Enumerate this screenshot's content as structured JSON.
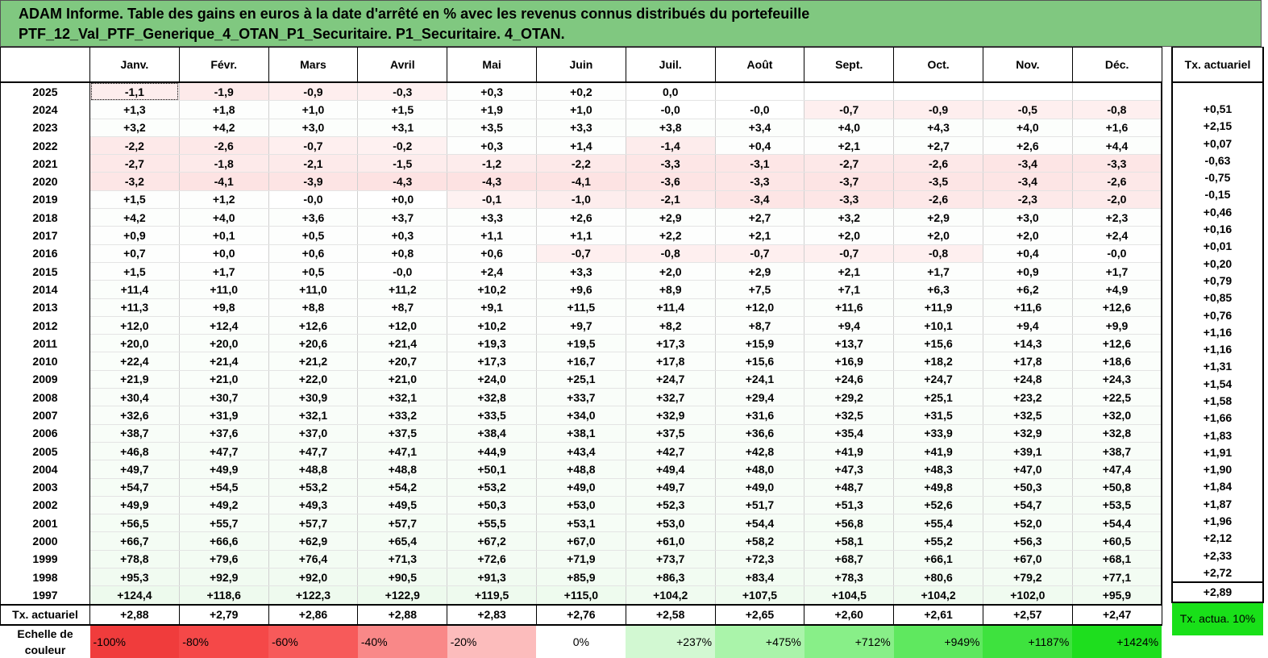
{
  "title": {
    "line1": "ADAM Informe. Table des gains en euros à la date d'arrêté en % avec les revenus connus distribués du portefeuille",
    "line2": "PTF_12_Val_PTF_Generique_4_OTAN_P1_Securitaire. P1_Securitaire. 4_OTAN."
  },
  "months": [
    "Janv.",
    "Févr.",
    "Mars",
    "Avril",
    "Mai",
    "Juin",
    "Juil.",
    "Août",
    "Sept.",
    "Oct.",
    "Nov.",
    "Déc."
  ],
  "side_header": "Tx. actuariel",
  "rows": [
    {
      "year": "2025",
      "values": [
        "-1,1",
        "-1,9",
        "-0,9",
        "-0,3",
        "+0,3",
        "+0,2",
        "0,0",
        "",
        "",
        "",
        "",
        ""
      ],
      "tx": ""
    },
    {
      "year": "2024",
      "values": [
        "+1,3",
        "+1,8",
        "+1,0",
        "+1,5",
        "+1,9",
        "+1,0",
        "-0,0",
        "-0,0",
        "-0,7",
        "-0,9",
        "-0,5",
        "-0,8"
      ],
      "tx": "+0,51"
    },
    {
      "year": "2023",
      "values": [
        "+3,2",
        "+4,2",
        "+3,0",
        "+3,1",
        "+3,5",
        "+3,3",
        "+3,8",
        "+3,4",
        "+4,0",
        "+4,3",
        "+4,0",
        "+1,6"
      ],
      "tx": "+2,15"
    },
    {
      "year": "2022",
      "values": [
        "-2,2",
        "-2,6",
        "-0,7",
        "-0,2",
        "+0,3",
        "+1,4",
        "-1,4",
        "+0,4",
        "+2,1",
        "+2,7",
        "+2,6",
        "+4,4"
      ],
      "tx": "+0,07"
    },
    {
      "year": "2021",
      "values": [
        "-2,7",
        "-1,8",
        "-2,1",
        "-1,5",
        "-1,2",
        "-2,2",
        "-3,3",
        "-3,1",
        "-2,7",
        "-2,6",
        "-3,4",
        "-3,3"
      ],
      "tx": "-0,63"
    },
    {
      "year": "2020",
      "values": [
        "-3,2",
        "-4,1",
        "-3,9",
        "-4,3",
        "-4,3",
        "-4,1",
        "-3,6",
        "-3,3",
        "-3,7",
        "-3,5",
        "-3,4",
        "-2,6"
      ],
      "tx": "-0,75"
    },
    {
      "year": "2019",
      "values": [
        "+1,5",
        "+1,2",
        "-0,0",
        "+0,0",
        "-0,1",
        "-1,0",
        "-2,1",
        "-3,4",
        "-3,3",
        "-2,6",
        "-2,3",
        "-2,0"
      ],
      "tx": "-0,15"
    },
    {
      "year": "2018",
      "values": [
        "+4,2",
        "+4,0",
        "+3,6",
        "+3,7",
        "+3,3",
        "+2,6",
        "+2,9",
        "+2,7",
        "+3,2",
        "+2,9",
        "+3,0",
        "+2,3"
      ],
      "tx": "+0,46"
    },
    {
      "year": "2017",
      "values": [
        "+0,9",
        "+0,1",
        "+0,5",
        "+0,3",
        "+1,1",
        "+1,1",
        "+2,2",
        "+2,1",
        "+2,0",
        "+2,0",
        "+2,0",
        "+2,4"
      ],
      "tx": "+0,16"
    },
    {
      "year": "2016",
      "values": [
        "+0,7",
        "+0,0",
        "+0,6",
        "+0,8",
        "+0,6",
        "-0,7",
        "-0,8",
        "-0,7",
        "-0,7",
        "-0,8",
        "+0,4",
        "-0,0"
      ],
      "tx": "+0,01"
    },
    {
      "year": "2015",
      "values": [
        "+1,5",
        "+1,7",
        "+0,5",
        "-0,0",
        "+2,4",
        "+3,3",
        "+2,0",
        "+2,9",
        "+2,1",
        "+1,7",
        "+0,9",
        "+1,7"
      ],
      "tx": "+0,20"
    },
    {
      "year": "2014",
      "values": [
        "+11,4",
        "+11,0",
        "+11,0",
        "+11,2",
        "+10,2",
        "+9,6",
        "+8,9",
        "+7,5",
        "+7,1",
        "+6,3",
        "+6,2",
        "+4,9"
      ],
      "tx": "+0,79"
    },
    {
      "year": "2013",
      "values": [
        "+11,3",
        "+9,8",
        "+8,8",
        "+8,7",
        "+9,1",
        "+11,5",
        "+11,4",
        "+12,0",
        "+11,6",
        "+11,9",
        "+11,6",
        "+12,6"
      ],
      "tx": "+0,85"
    },
    {
      "year": "2012",
      "values": [
        "+12,0",
        "+12,4",
        "+12,6",
        "+12,0",
        "+10,2",
        "+9,7",
        "+8,2",
        "+8,7",
        "+9,4",
        "+10,1",
        "+9,4",
        "+9,9"
      ],
      "tx": "+0,76"
    },
    {
      "year": "2011",
      "values": [
        "+20,0",
        "+20,0",
        "+20,6",
        "+21,4",
        "+19,3",
        "+19,5",
        "+17,3",
        "+15,9",
        "+13,7",
        "+15,6",
        "+14,3",
        "+12,6"
      ],
      "tx": "+1,16"
    },
    {
      "year": "2010",
      "values": [
        "+22,4",
        "+21,4",
        "+21,2",
        "+20,7",
        "+17,3",
        "+16,7",
        "+17,8",
        "+15,6",
        "+16,9",
        "+18,2",
        "+17,8",
        "+18,6"
      ],
      "tx": "+1,16"
    },
    {
      "year": "2009",
      "values": [
        "+21,9",
        "+21,0",
        "+22,0",
        "+21,0",
        "+24,0",
        "+25,1",
        "+24,7",
        "+24,1",
        "+24,6",
        "+24,7",
        "+24,8",
        "+24,3"
      ],
      "tx": "+1,31"
    },
    {
      "year": "2008",
      "values": [
        "+30,4",
        "+30,7",
        "+30,9",
        "+32,1",
        "+32,8",
        "+33,7",
        "+32,7",
        "+29,4",
        "+29,2",
        "+25,1",
        "+23,2",
        "+22,5"
      ],
      "tx": "+1,54"
    },
    {
      "year": "2007",
      "values": [
        "+32,6",
        "+31,9",
        "+32,1",
        "+33,2",
        "+33,5",
        "+34,0",
        "+32,9",
        "+31,6",
        "+32,5",
        "+31,5",
        "+32,5",
        "+32,0"
      ],
      "tx": "+1,58"
    },
    {
      "year": "2006",
      "values": [
        "+38,7",
        "+37,6",
        "+37,0",
        "+37,5",
        "+38,4",
        "+38,1",
        "+37,5",
        "+36,6",
        "+35,4",
        "+33,9",
        "+32,9",
        "+32,8"
      ],
      "tx": "+1,66"
    },
    {
      "year": "2005",
      "values": [
        "+46,8",
        "+47,7",
        "+47,7",
        "+47,1",
        "+44,9",
        "+43,4",
        "+42,7",
        "+42,8",
        "+41,9",
        "+41,9",
        "+39,1",
        "+38,7"
      ],
      "tx": "+1,83"
    },
    {
      "year": "2004",
      "values": [
        "+49,7",
        "+49,9",
        "+48,8",
        "+48,8",
        "+50,1",
        "+48,8",
        "+49,4",
        "+48,0",
        "+47,3",
        "+48,3",
        "+47,0",
        "+47,4"
      ],
      "tx": "+1,91"
    },
    {
      "year": "2003",
      "values": [
        "+54,7",
        "+54,5",
        "+53,2",
        "+54,2",
        "+53,2",
        "+49,0",
        "+49,7",
        "+49,0",
        "+48,7",
        "+49,8",
        "+50,3",
        "+50,8"
      ],
      "tx": "+1,90"
    },
    {
      "year": "2002",
      "values": [
        "+49,9",
        "+49,2",
        "+49,3",
        "+49,5",
        "+50,3",
        "+53,0",
        "+52,3",
        "+51,7",
        "+51,3",
        "+52,6",
        "+54,7",
        "+53,5"
      ],
      "tx": "+1,84"
    },
    {
      "year": "2001",
      "values": [
        "+56,5",
        "+55,7",
        "+57,7",
        "+57,7",
        "+55,5",
        "+53,1",
        "+53,0",
        "+54,4",
        "+56,8",
        "+55,4",
        "+52,0",
        "+54,4"
      ],
      "tx": "+1,87"
    },
    {
      "year": "2000",
      "values": [
        "+66,7",
        "+66,6",
        "+62,9",
        "+65,4",
        "+67,2",
        "+67,0",
        "+61,0",
        "+58,2",
        "+58,1",
        "+55,2",
        "+56,3",
        "+60,5"
      ],
      "tx": "+1,96"
    },
    {
      "year": "1999",
      "values": [
        "+78,8",
        "+79,6",
        "+76,4",
        "+71,3",
        "+72,6",
        "+71,9",
        "+73,7",
        "+72,3",
        "+68,7",
        "+66,1",
        "+67,0",
        "+68,1"
      ],
      "tx": "+2,12"
    },
    {
      "year": "1998",
      "values": [
        "+95,3",
        "+92,9",
        "+92,0",
        "+90,5",
        "+91,3",
        "+85,9",
        "+86,3",
        "+83,4",
        "+78,3",
        "+80,6",
        "+79,2",
        "+77,1"
      ],
      "tx": "+2,33"
    },
    {
      "year": "1997",
      "values": [
        "+124,4",
        "+118,6",
        "+122,3",
        "+122,9",
        "+119,5",
        "+115,0",
        "+104,2",
        "+107,5",
        "+104,5",
        "+104,2",
        "+102,0",
        "+95,9"
      ],
      "tx": "+2,72"
    }
  ],
  "footer": {
    "label": "Tx. actuariel",
    "values": [
      "+2,88",
      "+2,79",
      "+2,86",
      "+2,88",
      "+2,83",
      "+2,76",
      "+2,58",
      "+2,65",
      "+2,60",
      "+2,61",
      "+2,57",
      "+2,47"
    ],
    "tx": "+2,89"
  },
  "scale": {
    "label": "Echelle de couleur",
    "items": [
      {
        "text": "-100%",
        "color": "#f03c3c"
      },
      {
        "text": "-80%",
        "color": "#f54848"
      },
      {
        "text": "-60%",
        "color": "#f75a5a"
      },
      {
        "text": "-40%",
        "color": "#f98888"
      },
      {
        "text": "-20%",
        "color": "#fcbcbc"
      },
      {
        "text": "0%",
        "color": "#ffffff"
      },
      {
        "text": "+237%",
        "color": "#d2f8d2"
      },
      {
        "text": "+475%",
        "color": "#aaf4aa"
      },
      {
        "text": "+712%",
        "color": "#88ef88"
      },
      {
        "text": "+949%",
        "color": "#5fe85f"
      },
      {
        "text": "+1187%",
        "color": "#3ee23e"
      },
      {
        "text": "+1424%",
        "color": "#1ede1e"
      }
    ],
    "side": "Tx. actua. 10%"
  }
}
